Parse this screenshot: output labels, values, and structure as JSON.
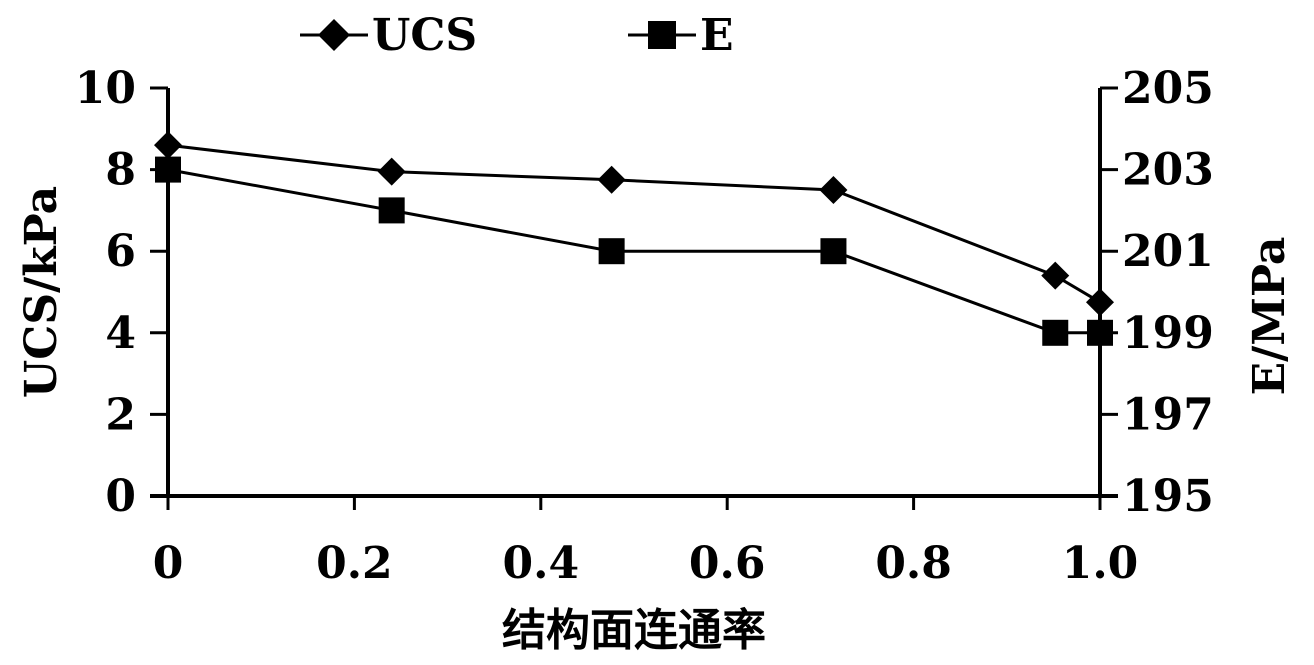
{
  "chart_data": {
    "type": "line",
    "xlabel": "结构面连通率",
    "ylabel_left": "UCS/kPa",
    "ylabel_right": "E/MPa",
    "xlim": [
      0,
      1.0
    ],
    "ylim_left": [
      0,
      10
    ],
    "ylim_right": [
      195,
      205
    ],
    "x_ticks": [
      "0",
      "0.2",
      "0.4",
      "0.6",
      "0.8",
      "1.0"
    ],
    "y_left_ticks": [
      "0",
      "2",
      "4",
      "6",
      "8",
      "10"
    ],
    "y_right_ticks": [
      "195",
      "197",
      "199",
      "201",
      "203",
      "205"
    ],
    "legend": {
      "placement": "top",
      "entries": [
        "UCS",
        "E"
      ]
    },
    "grid": false,
    "series": [
      {
        "name": "UCS",
        "axis": "left",
        "marker": "diamond",
        "x": [
          0,
          0.24,
          0.476,
          0.714,
          0.952,
          1.0
        ],
        "y": [
          8.6,
          7.95,
          7.75,
          7.5,
          5.4,
          4.75
        ]
      },
      {
        "name": "E",
        "axis": "right",
        "marker": "square",
        "x": [
          0,
          0.24,
          0.476,
          0.714,
          0.952,
          1.0
        ],
        "y": [
          203,
          202,
          201,
          201,
          199,
          199
        ]
      }
    ]
  }
}
